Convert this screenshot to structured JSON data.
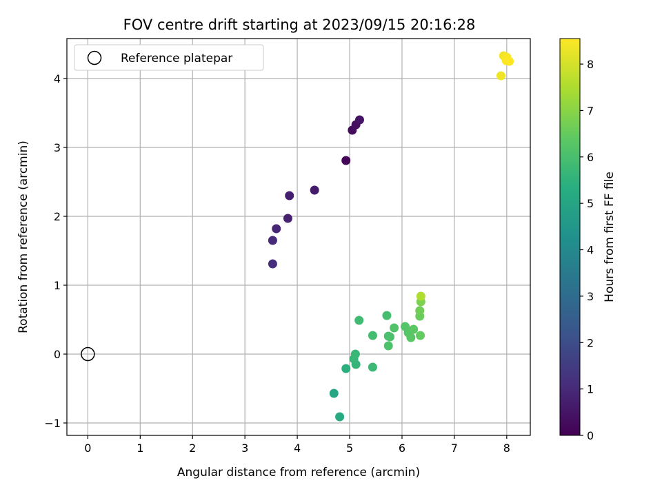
{
  "chart_data": {
    "type": "scatter",
    "title": "FOV centre drift starting at 2023/09/15 20:16:28",
    "xlabel": "Angular distance from reference (arcmin)",
    "ylabel": "Rotation from reference (arcmin)",
    "xlim": [
      -0.4,
      8.45
    ],
    "ylim": [
      -1.18,
      4.58
    ],
    "xticks": [
      0,
      1,
      2,
      3,
      4,
      5,
      6,
      7,
      8
    ],
    "yticks": [
      -1,
      0,
      1,
      2,
      3,
      4
    ],
    "grid": true,
    "legend": {
      "placement": "top-left",
      "entries": [
        "Reference platepar"
      ]
    },
    "reference_point": {
      "x": 0,
      "y": 0
    },
    "colorbar": {
      "label": "Hours from first FF file",
      "min": 0,
      "max": 8.55,
      "ticks": [
        0,
        1,
        2,
        3,
        4,
        5,
        6,
        7,
        8
      ],
      "colormap": "viridis"
    },
    "points": [
      {
        "x": 4.93,
        "y": 2.81,
        "t": 0.1
      },
      {
        "x": 5.05,
        "y": 3.25,
        "t": 0.25
      },
      {
        "x": 5.12,
        "y": 3.33,
        "t": 0.35
      },
      {
        "x": 5.19,
        "y": 3.4,
        "t": 0.45
      },
      {
        "x": 4.33,
        "y": 2.38,
        "t": 0.6
      },
      {
        "x": 3.85,
        "y": 2.3,
        "t": 0.7
      },
      {
        "x": 3.82,
        "y": 1.97,
        "t": 0.8
      },
      {
        "x": 3.6,
        "y": 1.82,
        "t": 0.9
      },
      {
        "x": 3.53,
        "y": 1.65,
        "t": 1.0
      },
      {
        "x": 3.53,
        "y": 1.31,
        "t": 1.1
      },
      {
        "x": 4.7,
        "y": -0.57,
        "t": 5.05
      },
      {
        "x": 4.81,
        "y": -0.91,
        "t": 5.2
      },
      {
        "x": 4.93,
        "y": -0.21,
        "t": 5.4
      },
      {
        "x": 5.12,
        "y": -0.15,
        "t": 5.6
      },
      {
        "x": 5.08,
        "y": -0.07,
        "t": 5.65
      },
      {
        "x": 5.11,
        "y": 0.0,
        "t": 5.7
      },
      {
        "x": 5.44,
        "y": -0.19,
        "t": 5.75
      },
      {
        "x": 5.18,
        "y": 0.49,
        "t": 5.85
      },
      {
        "x": 5.44,
        "y": 0.27,
        "t": 5.9
      },
      {
        "x": 5.71,
        "y": 0.56,
        "t": 5.95
      },
      {
        "x": 5.74,
        "y": 0.26,
        "t": 6.0
      },
      {
        "x": 5.77,
        "y": 0.25,
        "t": 6.05
      },
      {
        "x": 5.74,
        "y": 0.12,
        "t": 6.1
      },
      {
        "x": 5.85,
        "y": 0.38,
        "t": 6.15
      },
      {
        "x": 6.06,
        "y": 0.4,
        "t": 6.2
      },
      {
        "x": 6.12,
        "y": 0.31,
        "t": 6.25
      },
      {
        "x": 6.17,
        "y": 0.24,
        "t": 6.3
      },
      {
        "x": 6.22,
        "y": 0.36,
        "t": 6.35
      },
      {
        "x": 6.35,
        "y": 0.27,
        "t": 6.45
      },
      {
        "x": 6.34,
        "y": 0.55,
        "t": 6.55
      },
      {
        "x": 6.34,
        "y": 0.63,
        "t": 6.65
      },
      {
        "x": 6.36,
        "y": 0.76,
        "t": 6.8
      },
      {
        "x": 6.36,
        "y": 0.84,
        "t": 7.5
      },
      {
        "x": 7.89,
        "y": 4.04,
        "t": 8.35
      },
      {
        "x": 7.94,
        "y": 4.33,
        "t": 8.4
      },
      {
        "x": 8.0,
        "y": 4.31,
        "t": 8.45
      },
      {
        "x": 7.99,
        "y": 4.26,
        "t": 8.5
      },
      {
        "x": 8.05,
        "y": 4.25,
        "t": 8.55
      }
    ]
  }
}
